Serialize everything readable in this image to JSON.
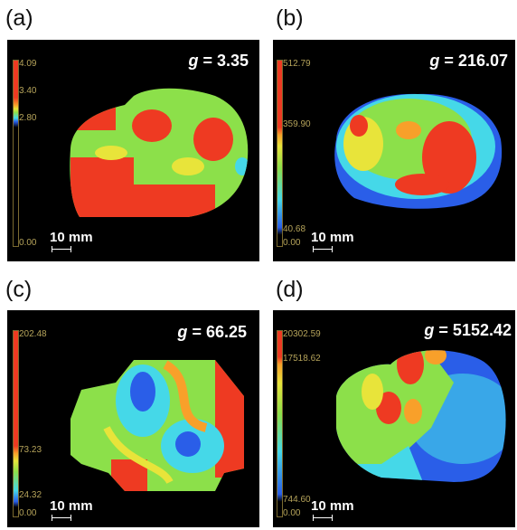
{
  "panels": [
    {
      "label": "(a)",
      "g_label": "g",
      "g_value": "= 3.35",
      "colorbar_ticks": [
        "4.09",
        "3.40",
        "2.80",
        "0.00"
      ],
      "scale_text": "10 mm"
    },
    {
      "label": "(b)",
      "g_label": "g",
      "g_value": "= 216.07",
      "colorbar_ticks": [
        "512.79",
        "359.90",
        "40.68",
        "0.00"
      ],
      "scale_text": "10 mm"
    },
    {
      "label": "(c)",
      "g_label": "g",
      "g_value": "= 66.25",
      "colorbar_ticks": [
        "202.48",
        "73.23",
        "24.32",
        "0.00"
      ],
      "scale_text": "10 mm"
    },
    {
      "label": "(d)",
      "g_label": "g",
      "g_value": "= 5152.42",
      "colorbar_ticks": [
        "20302.59",
        "17518.62",
        "744.60",
        "0.00"
      ],
      "scale_text": "10 mm"
    }
  ],
  "colors": {
    "red": "#ee3a22",
    "orange": "#f8a02a",
    "yellow": "#e8e43a",
    "green": "#8ce04a",
    "cyan": "#45d8e8",
    "blue": "#2a5ee8",
    "tick": "#b5a35a"
  }
}
